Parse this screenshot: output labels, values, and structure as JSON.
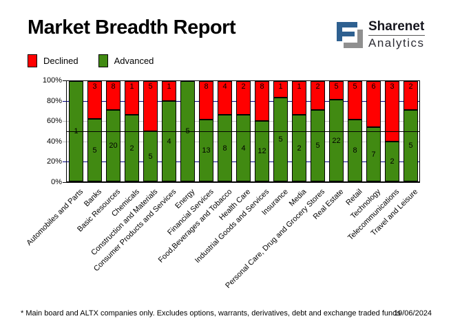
{
  "header": {
    "title": "Market Breadth Report"
  },
  "logo": {
    "name": "Sharenet",
    "division": "Analytics",
    "icon_blue": "#2E6090",
    "icon_gray": "#8F8F8F"
  },
  "legend": {
    "items": [
      {
        "label": "Declined",
        "color": "#FF0000"
      },
      {
        "label": "Advanced",
        "color": "#418A12"
      }
    ]
  },
  "footer": {
    "note": "* Main board and ALTX companies only. Excludes options, warrants, derivatives, debt and exchange traded funds",
    "date": "19/06/2024"
  },
  "chart_data": {
    "type": "bar",
    "stacked": true,
    "percent_based": true,
    "title": "Market Breadth Report",
    "legend_position": "top-left",
    "categories": [
      "Automobiles and Parts",
      "Banks",
      "Basic Resources",
      "Chemicals",
      "Construction and Materials",
      "Consumer Products and Services",
      "Energy",
      "Financial Services",
      "Food,Beverages and Tobacco",
      "Health Care",
      "Industrial Goods and Services",
      "Insurance",
      "Media",
      "Personal Care, Drug and Grocery Stores",
      "Real Estate",
      "Retail",
      "Technology",
      "Telecommunications",
      "Travel and Leisure"
    ],
    "series": [
      {
        "name": "Declined",
        "color": "#FF0000",
        "values": [
          0,
          3,
          8,
          1,
          5,
          1,
          0,
          8,
          4,
          2,
          8,
          1,
          1,
          2,
          5,
          5,
          6,
          3,
          2
        ]
      },
      {
        "name": "Advanced",
        "color": "#418A12",
        "values": [
          1,
          5,
          20,
          2,
          5,
          4,
          5,
          13,
          8,
          4,
          12,
          5,
          2,
          5,
          22,
          8,
          7,
          2,
          5
        ]
      }
    ],
    "y_axis": {
      "range": [
        0,
        100
      ],
      "ticks": [
        {
          "label": "0%",
          "pct": 0
        },
        {
          "label": "20%",
          "pct": 20
        },
        {
          "label": "40%",
          "pct": 40
        },
        {
          "label": "60%",
          "pct": 60
        },
        {
          "label": "80%",
          "pct": 80
        },
        {
          "label": "100%",
          "pct": 100
        }
      ]
    },
    "gridlines": [
      {
        "pct": 0,
        "color": "#000000"
      },
      {
        "pct": 20,
        "color": "#000080"
      },
      {
        "pct": 40,
        "color": "#C0C0C0"
      },
      {
        "pct": 60,
        "color": "#C0C0C0"
      },
      {
        "pct": 80,
        "color": "#000080"
      },
      {
        "pct": 100,
        "color": "#000000"
      }
    ],
    "reference_line": {
      "pct": 50,
      "color": "#000000"
    }
  }
}
